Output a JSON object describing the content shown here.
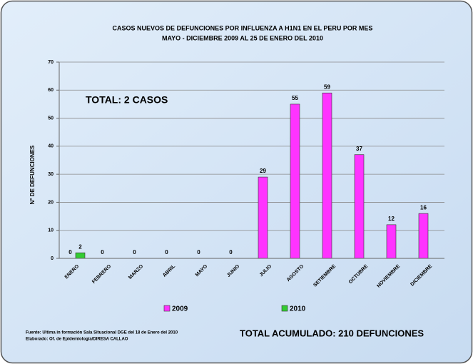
{
  "chart_data": {
    "type": "bar",
    "title": "CASOS NUEVOS DE DEFUNCIONES POR INFLUENZA A H1N1 EN EL PERU POR MES",
    "subtitle": "MAYO - DICIEMBRE 2009 AL 25 DE ENERO DEL 2010",
    "ylabel": "N° DE DEFUNCIONES",
    "categories": [
      "ENERO",
      "FEBRERO",
      "MARZO",
      "ABRIL",
      "MAYO",
      "JUNIO",
      "JULIO",
      "AGOSTO",
      "SETIEMBRE",
      "OCTUBRE",
      "NOVIEMBRE",
      "DICIEMBRE"
    ],
    "series": [
      {
        "name": "2009",
        "color": "#ff33ff",
        "values": [
          0,
          0,
          0,
          0,
          0,
          0,
          29,
          55,
          59,
          37,
          12,
          16
        ]
      },
      {
        "name": "2010",
        "color": "#33cc33",
        "values": [
          2,
          null,
          null,
          null,
          null,
          null,
          null,
          null,
          null,
          null,
          null,
          null
        ]
      }
    ],
    "ylim": [
      0,
      70
    ],
    "yticks": [
      0,
      10,
      20,
      30,
      40,
      50,
      60,
      70
    ],
    "grid": true,
    "annotations": [
      "TOTAL: 2 CASOS",
      "TOTAL ACUMULADO: 210 DEFUNCIONES"
    ],
    "source": [
      "Fuente: Ultima in formación Sala Situacional DGE del 18 de Enero del 2010",
      "Elaborado: Of. de Epidemiología/DIRESA CALLAO"
    ]
  }
}
